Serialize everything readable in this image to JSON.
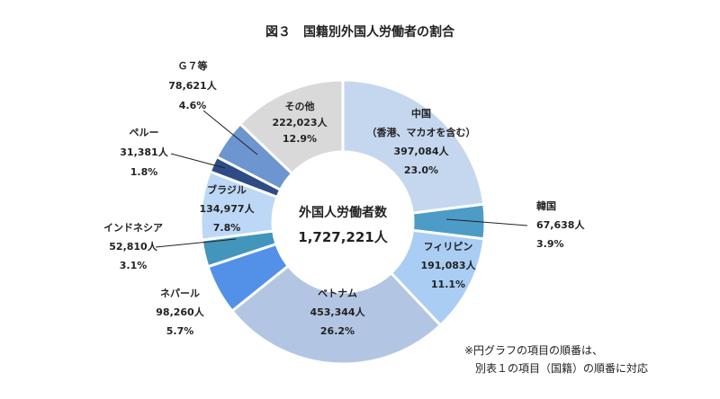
{
  "chart_data": {
    "type": "pie",
    "title": "図３　国籍別外国人労働者の割合",
    "center_label": "外国人労働者数",
    "center_total": "1,727,221人",
    "slices": [
      {
        "name": "中国",
        "name_sub": "（香港、マカオを含む）",
        "count": 397084,
        "count_label": "397,084人",
        "percent_label": "23.0%",
        "color": "#c5d7ee"
      },
      {
        "name": "韓国",
        "count": 67638,
        "count_label": "67,638人",
        "percent_label": "3.9%",
        "color": "#4d9cc8"
      },
      {
        "name": "フィリピン",
        "count": 191083,
        "count_label": "191,083人",
        "percent_label": "11.1%",
        "color": "#a9cdf3"
      },
      {
        "name": "ベトナム",
        "count": 453344,
        "count_label": "453,344人",
        "percent_label": "26.2%",
        "color": "#b2c6e3"
      },
      {
        "name": "ネパール",
        "count": 98260,
        "count_label": "98,260人",
        "percent_label": "5.7%",
        "color": "#5391e8"
      },
      {
        "name": "インドネシア",
        "count": 52810,
        "count_label": "52,810人",
        "percent_label": "3.1%",
        "color": "#4295bb"
      },
      {
        "name": "ブラジル",
        "count": 134977,
        "count_label": "134,977人",
        "percent_label": "7.8%",
        "color": "#bcd8f6"
      },
      {
        "name": "ペルー",
        "count": 31381,
        "count_label": "31,381人",
        "percent_label": "1.8%",
        "color": "#2f4b86"
      },
      {
        "name": "Ｇ７等",
        "count": 78621,
        "count_label": "78,621人",
        "percent_label": "4.6%",
        "color": "#6d95cf"
      },
      {
        "name": "その他",
        "count": 222023,
        "count_label": "222,023人",
        "percent_label": "12.9%",
        "color": "#d9d9d9"
      }
    ],
    "note": [
      "※円グラフの項目の順番は、",
      "別表１の項目（国籍）の順番に対応"
    ]
  }
}
